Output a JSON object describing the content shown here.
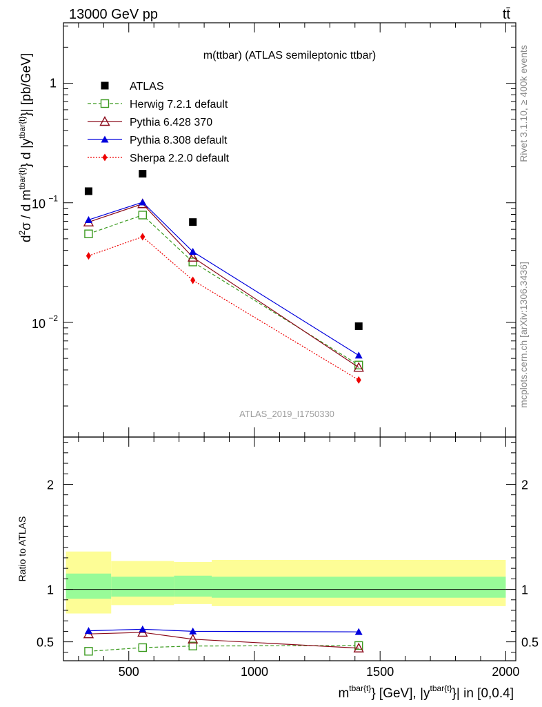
{
  "header": {
    "left_label": "13000 GeV pp",
    "right_label": "tt̄"
  },
  "side_text": {
    "rivet": "Rivet 3.1.10, ≥ 400k events",
    "mcplots": "mcplots.cern.ch [arXiv:1306.3436]"
  },
  "chart_data": [
    {
      "type": "scatter",
      "panel": "main",
      "title": "m(ttbar) (ATLAS semileptonic ttbar)",
      "ylabel": "d²σ / d m^{tbar{t}} d |y^{tbar{t}}| [pb/GeV]",
      "yscale": "log",
      "ylim": [
        0.0011,
        3.2
      ],
      "xlim": [
        240,
        2040
      ],
      "y_ticks": [
        {
          "value": 1,
          "label": "1"
        },
        {
          "value": 0.1,
          "label": "10",
          "exp": "−1"
        },
        {
          "value": 0.01,
          "label": "10",
          "exp": "−2"
        }
      ],
      "watermark": "ATLAS_2019_I1750330",
      "legend_position": "top-left",
      "series": [
        {
          "name": "ATLAS",
          "color": "#000000",
          "marker": "square-filled",
          "line": "none",
          "x": [
            340,
            555,
            755,
            1415
          ],
          "y": [
            0.125,
            0.175,
            0.069,
            0.0093
          ]
        },
        {
          "name": "Herwig 7.2.1 default",
          "color": "#3a9a1e",
          "marker": "square-open",
          "line": "dashed",
          "x": [
            340,
            555,
            755,
            1415
          ],
          "y": [
            0.055,
            0.079,
            0.032,
            0.0044
          ]
        },
        {
          "name": "Pythia 6.428 370",
          "color": "#8b0a1a",
          "marker": "triangle-open",
          "line": "solid",
          "x": [
            340,
            555,
            755,
            1415
          ],
          "y": [
            0.069,
            0.098,
            0.035,
            0.0042
          ]
        },
        {
          "name": "Pythia 8.308 default",
          "color": "#0000dd",
          "marker": "triangle-filled",
          "line": "solid",
          "x": [
            340,
            555,
            755,
            1415
          ],
          "y": [
            0.072,
            0.101,
            0.039,
            0.0053
          ]
        },
        {
          "name": "Sherpa 2.2.0 default",
          "color": "#ee0000",
          "marker": "diamond-filled",
          "line": "dotted",
          "x": [
            340,
            555,
            755,
            1415
          ],
          "y": [
            0.036,
            0.052,
            0.0225,
            0.0033
          ]
        }
      ]
    },
    {
      "type": "line",
      "panel": "ratio",
      "ylabel": "Ratio to ATLAS",
      "xlabel": "m^{tbar{t}} [GeV], |y^{tbar{t}}| in [0,0.4]",
      "ylim": [
        0.32,
        2.45
      ],
      "xlim": [
        240,
        2040
      ],
      "x_ticks": [
        500,
        1000,
        1500,
        2000
      ],
      "y_ticks": [
        {
          "value": 0.5,
          "label": "0.5"
        },
        {
          "value": 1,
          "label": "1"
        },
        {
          "value": 2,
          "label": "2"
        }
      ],
      "bands": [
        {
          "x0": 250,
          "x1": 430,
          "outer": [
            0.77,
            1.36
          ],
          "inner": [
            0.91,
            1.15
          ]
        },
        {
          "x0": 430,
          "x1": 680,
          "outer": [
            0.85,
            1.27
          ],
          "inner": [
            0.93,
            1.12
          ]
        },
        {
          "x0": 680,
          "x1": 830,
          "outer": [
            0.86,
            1.26
          ],
          "inner": [
            0.93,
            1.13
          ]
        },
        {
          "x0": 830,
          "x1": 2000,
          "outer": [
            0.84,
            1.28
          ],
          "inner": [
            0.92,
            1.12
          ]
        }
      ],
      "band_colors": {
        "outer": "#fdfd96",
        "inner": "#98fb98"
      },
      "reference_line": 1,
      "series": [
        {
          "name": "Herwig 7.2.1 default",
          "color": "#3a9a1e",
          "marker": "square-open",
          "line": "dashed",
          "x": [
            340,
            555,
            755,
            1415
          ],
          "y": [
            0.41,
            0.445,
            0.46,
            0.465
          ]
        },
        {
          "name": "Pythia 6.428 370",
          "color": "#8b0a1a",
          "marker": "triangle-open",
          "line": "solid",
          "x": [
            340,
            555,
            755,
            1415
          ],
          "y": [
            0.575,
            0.59,
            0.525,
            0.44
          ]
        },
        {
          "name": "Pythia 8.308 default",
          "color": "#0000dd",
          "marker": "triangle-filled",
          "line": "solid",
          "x": [
            340,
            555,
            755,
            1415
          ],
          "y": [
            0.605,
            0.62,
            0.6,
            0.595
          ]
        }
      ]
    }
  ]
}
